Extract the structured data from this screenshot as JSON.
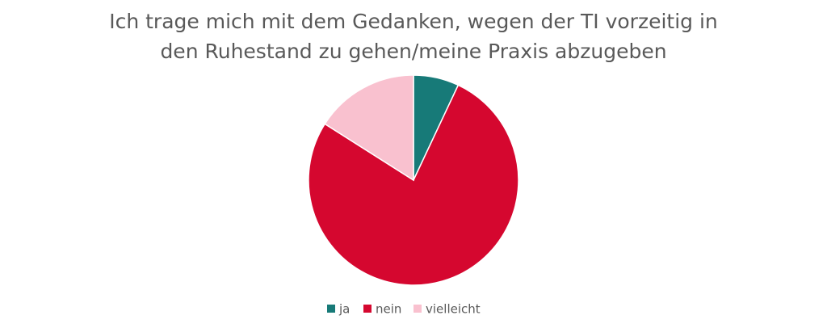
{
  "chart_data": {
    "type": "pie",
    "title": "Ich trage mich mit dem Gedanken, wegen der TI vorzeitig in den Ruhestand zu gehen/meine Praxis abzugeben",
    "categories": [
      "ja",
      "nein",
      "vielleicht"
    ],
    "values": [
      7,
      77,
      16
    ],
    "colors": [
      "#177a78",
      "#d5072f",
      "#f9c1cf"
    ],
    "legend": "bottom"
  }
}
